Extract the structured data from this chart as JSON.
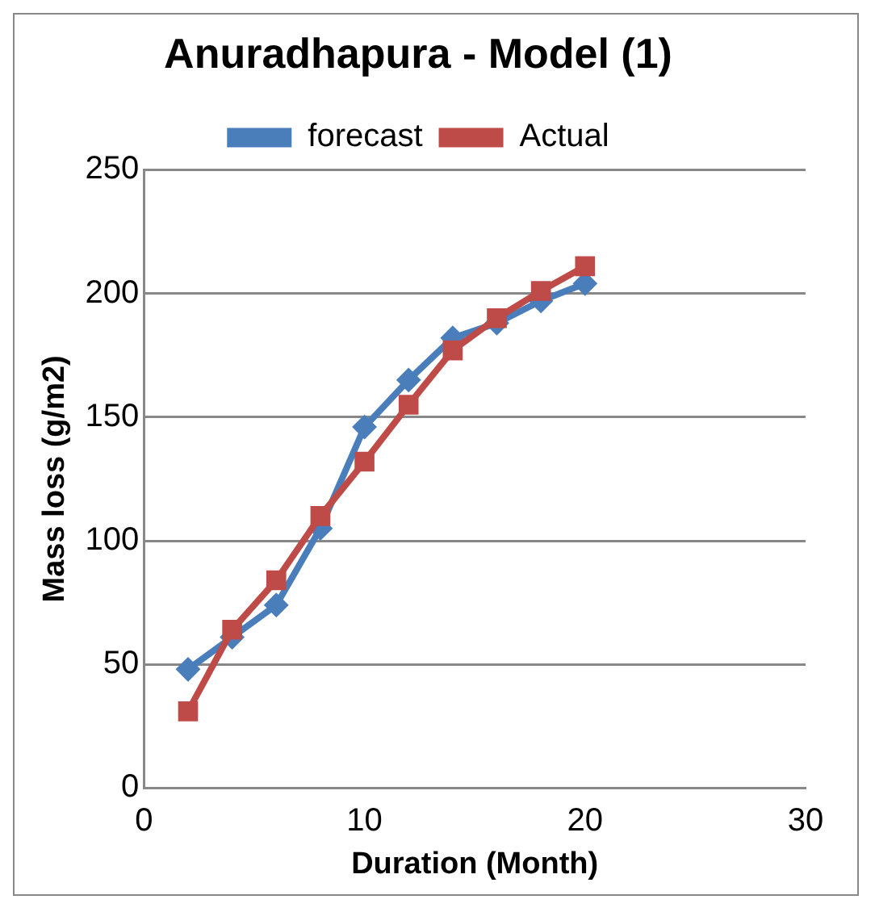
{
  "chart_data": {
    "type": "line",
    "title": "Anuradhapura - Model (1)",
    "xlabel": "Duration (Month)",
    "ylabel": "Mass loss (g/m2)",
    "x": [
      2,
      4,
      6,
      8,
      10,
      12,
      14,
      16,
      18,
      20
    ],
    "series": [
      {
        "name": "forecast",
        "color": "#4a7ebb",
        "marker": "diamond",
        "values": [
          48,
          61,
          74,
          105,
          146,
          165,
          182,
          188,
          197,
          204
        ]
      },
      {
        "name": "Actual",
        "color": "#be4b48",
        "marker": "square",
        "values": [
          31,
          64,
          84,
          110,
          132,
          155,
          177,
          190,
          201,
          211
        ]
      }
    ],
    "xlim": [
      0,
      30
    ],
    "xticks": [
      0,
      10,
      20,
      30
    ],
    "ylim": [
      0,
      250
    ],
    "yticks": [
      0,
      50,
      100,
      150,
      200,
      250
    ],
    "grid": "y",
    "legend": "top",
    "line_style": "solid"
  }
}
